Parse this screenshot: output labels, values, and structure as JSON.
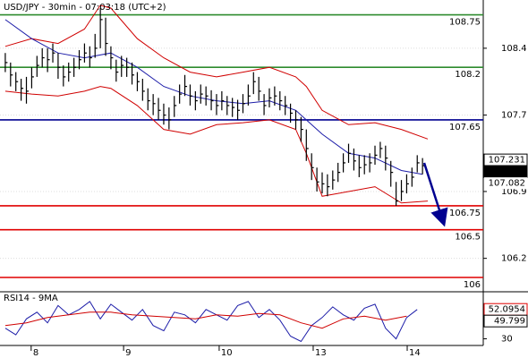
{
  "chart_data": [
    {
      "type": "ohlc",
      "title": "USD/JPY - 30min - 07:03:18 (UTC+2)",
      "xlim": [
        -1,
        90.5
      ],
      "ylim": [
        105.85,
        108.905
      ],
      "yticks": [
        106.2,
        106.9,
        107.7,
        108.4
      ],
      "grid": true,
      "color": "#000000",
      "x": [
        0,
        1,
        2,
        3,
        4,
        5,
        6,
        7,
        8,
        9,
        10,
        11,
        12,
        13,
        14,
        15,
        16,
        17,
        18,
        19,
        20,
        21,
        22,
        23,
        24,
        25,
        26,
        27,
        28,
        29,
        30,
        31,
        32,
        33,
        34,
        35,
        36,
        37,
        38,
        39,
        40,
        41,
        42,
        43,
        44,
        45,
        46,
        47,
        48,
        49,
        50,
        51,
        52,
        53,
        54,
        55,
        56,
        57,
        58,
        59,
        60,
        61,
        62,
        63,
        64,
        65,
        66,
        67,
        68,
        69,
        70,
        71,
        72,
        73,
        74,
        75,
        76,
        77,
        78,
        79
      ],
      "high": [
        108.35,
        108.25,
        108.15,
        108.08,
        108.1,
        108.2,
        108.32,
        108.4,
        108.4,
        108.45,
        108.35,
        108.22,
        108.25,
        108.3,
        108.38,
        108.45,
        108.42,
        108.55,
        108.82,
        108.72,
        108.42,
        108.28,
        108.32,
        108.3,
        108.25,
        108.15,
        108.08,
        107.98,
        107.92,
        107.88,
        107.82,
        107.78,
        107.9,
        108.02,
        108.12,
        108.02,
        107.95,
        108.02,
        108.0,
        107.96,
        107.92,
        107.95,
        107.9,
        107.88,
        107.86,
        107.92,
        108.02,
        108.15,
        108.1,
        107.92,
        107.98,
        108.0,
        107.95,
        107.9,
        107.82,
        107.75,
        107.68,
        107.55,
        107.3,
        107.15,
        107.1,
        107.08,
        107.12,
        107.2,
        107.3,
        107.4,
        107.35,
        107.28,
        107.28,
        107.3,
        107.38,
        107.42,
        107.38,
        107.22,
        107.0,
        107.02,
        107.08,
        107.15,
        107.28,
        107.25
      ],
      "low": [
        108.15,
        108.0,
        107.95,
        107.85,
        107.82,
        107.98,
        108.1,
        108.2,
        108.15,
        108.25,
        108.08,
        108.0,
        108.05,
        108.1,
        108.18,
        108.25,
        108.2,
        108.3,
        108.4,
        108.32,
        108.18,
        108.05,
        108.1,
        108.1,
        108.02,
        107.95,
        107.85,
        107.75,
        107.7,
        107.65,
        107.6,
        107.55,
        107.68,
        107.82,
        107.9,
        107.8,
        107.75,
        107.82,
        107.8,
        107.75,
        107.7,
        107.75,
        107.7,
        107.68,
        107.65,
        107.72,
        107.8,
        107.92,
        107.85,
        107.7,
        107.78,
        107.8,
        107.75,
        107.7,
        107.62,
        107.55,
        107.42,
        107.22,
        107.02,
        106.9,
        106.88,
        106.85,
        106.92,
        107.0,
        107.1,
        107.2,
        107.12,
        107.05,
        107.08,
        107.1,
        107.18,
        107.25,
        107.12,
        106.95,
        106.75,
        106.8,
        106.88,
        106.95,
        107.1,
        107.08
      ],
      "close": [
        108.25,
        108.12,
        108.05,
        107.98,
        107.95,
        108.1,
        108.22,
        108.3,
        108.28,
        108.35,
        108.2,
        108.1,
        108.15,
        108.2,
        108.28,
        108.35,
        108.3,
        108.4,
        108.7,
        108.45,
        108.3,
        108.15,
        108.22,
        108.2,
        108.12,
        108.05,
        107.95,
        107.85,
        107.82,
        107.75,
        107.7,
        107.65,
        107.8,
        107.92,
        108.0,
        107.9,
        107.85,
        107.92,
        107.9,
        107.85,
        107.8,
        107.85,
        107.8,
        107.78,
        107.75,
        107.82,
        107.9,
        108.05,
        107.95,
        107.8,
        107.88,
        107.9,
        107.85,
        107.8,
        107.72,
        107.65,
        107.55,
        107.35,
        107.15,
        107.0,
        106.98,
        106.95,
        107.02,
        107.1,
        107.2,
        107.3,
        107.22,
        107.15,
        107.18,
        107.2,
        107.28,
        107.35,
        107.25,
        107.1,
        106.8,
        106.9,
        106.98,
        107.05,
        107.2,
        107.17
      ],
      "series": [
        {
          "color": "#d00000",
          "x": [
            0,
            5,
            10,
            15,
            18,
            20,
            25,
            30,
            35,
            40,
            45,
            50,
            55,
            57,
            60,
            65,
            70,
            75,
            80
          ],
          "values": [
            108.42,
            108.5,
            108.45,
            108.6,
            108.85,
            108.82,
            108.5,
            108.3,
            108.15,
            108.1,
            108.15,
            108.2,
            108.1,
            108.0,
            107.75,
            107.6,
            107.62,
            107.55,
            107.45
          ]
        },
        {
          "color": "#d00000",
          "x": [
            0,
            5,
            10,
            15,
            18,
            20,
            25,
            30,
            35,
            40,
            45,
            50,
            55,
            57,
            60,
            65,
            70,
            75,
            80
          ],
          "values": [
            107.95,
            107.92,
            107.9,
            107.95,
            108.0,
            107.98,
            107.8,
            107.55,
            107.5,
            107.6,
            107.62,
            107.65,
            107.55,
            107.3,
            106.85,
            106.9,
            106.95,
            106.78,
            106.8
          ]
        },
        {
          "color": "#1c1ca8",
          "x": [
            0,
            5,
            10,
            15,
            20,
            25,
            30,
            35,
            40,
            45,
            50,
            55,
            60,
            65,
            70,
            75,
            79
          ],
          "values": [
            108.7,
            108.5,
            108.35,
            108.3,
            108.35,
            108.2,
            108.0,
            107.9,
            107.85,
            107.82,
            107.85,
            107.75,
            107.5,
            107.3,
            107.25,
            107.12,
            107.08
          ]
        }
      ],
      "levels": [
        {
          "value": 108.75,
          "color": "#2e8b2e"
        },
        {
          "value": 108.2,
          "color": "#2e8b2e"
        },
        {
          "value": 107.65,
          "color": "#000090"
        },
        {
          "value": 106.75,
          "color": "#e00000"
        },
        {
          "value": 106.5,
          "color": "#e00000"
        },
        {
          "value": 106,
          "color": "#e00000"
        }
      ],
      "price_labels": [
        {
          "value": 107.231,
          "style": "box",
          "color": "#000000"
        },
        {
          "value": 107.17,
          "style": "fill",
          "color": "#000000"
        },
        {
          "value": 107.082,
          "style": "text",
          "color": "#e00000"
        }
      ]
    },
    {
      "type": "line",
      "title": "RSI14 - 9MA",
      "xlim": [
        -1,
        90.5
      ],
      "ylim": [
        25,
        64
      ],
      "yticks": [
        30
      ],
      "xticks": [
        {
          "value": 4.9,
          "label": "8"
        },
        {
          "value": 22.4,
          "label": "9"
        },
        {
          "value": 40.5,
          "label": "10"
        },
        {
          "value": 58.3,
          "label": "13"
        },
        {
          "value": 76.1,
          "label": "14"
        }
      ],
      "series": [
        {
          "color": "#1c1ca8",
          "x": [
            0,
            2,
            4,
            6,
            8,
            10,
            12,
            14,
            16,
            18,
            20,
            22,
            24,
            26,
            28,
            30,
            32,
            34,
            36,
            38,
            40,
            42,
            44,
            46,
            48,
            50,
            52,
            54,
            56,
            58,
            60,
            62,
            64,
            66,
            68,
            70,
            72,
            74,
            76,
            78
          ],
          "values": [
            38,
            33,
            45,
            50,
            42,
            55,
            48,
            52,
            58,
            45,
            56,
            50,
            44,
            52,
            40,
            36,
            50,
            48,
            42,
            52,
            48,
            44,
            55,
            58,
            46,
            52,
            44,
            32,
            28,
            40,
            46,
            54,
            48,
            44,
            53,
            56,
            38,
            30,
            46,
            52
          ]
        },
        {
          "color": "#d00000",
          "x": [
            0,
            4,
            8,
            12,
            16,
            20,
            24,
            28,
            32,
            36,
            40,
            44,
            48,
            52,
            56,
            60,
            64,
            68,
            72,
            76
          ],
          "values": [
            40,
            42,
            46,
            48,
            50,
            50,
            48,
            47,
            46,
            45,
            48,
            47,
            49,
            48,
            42,
            38,
            45,
            47,
            44,
            47
          ]
        }
      ],
      "price_labels": [
        {
          "value": 52.0954,
          "style": "box",
          "color": "#e00000"
        },
        {
          "value": 49.799,
          "style": "box",
          "color": "#000000"
        }
      ]
    }
  ]
}
